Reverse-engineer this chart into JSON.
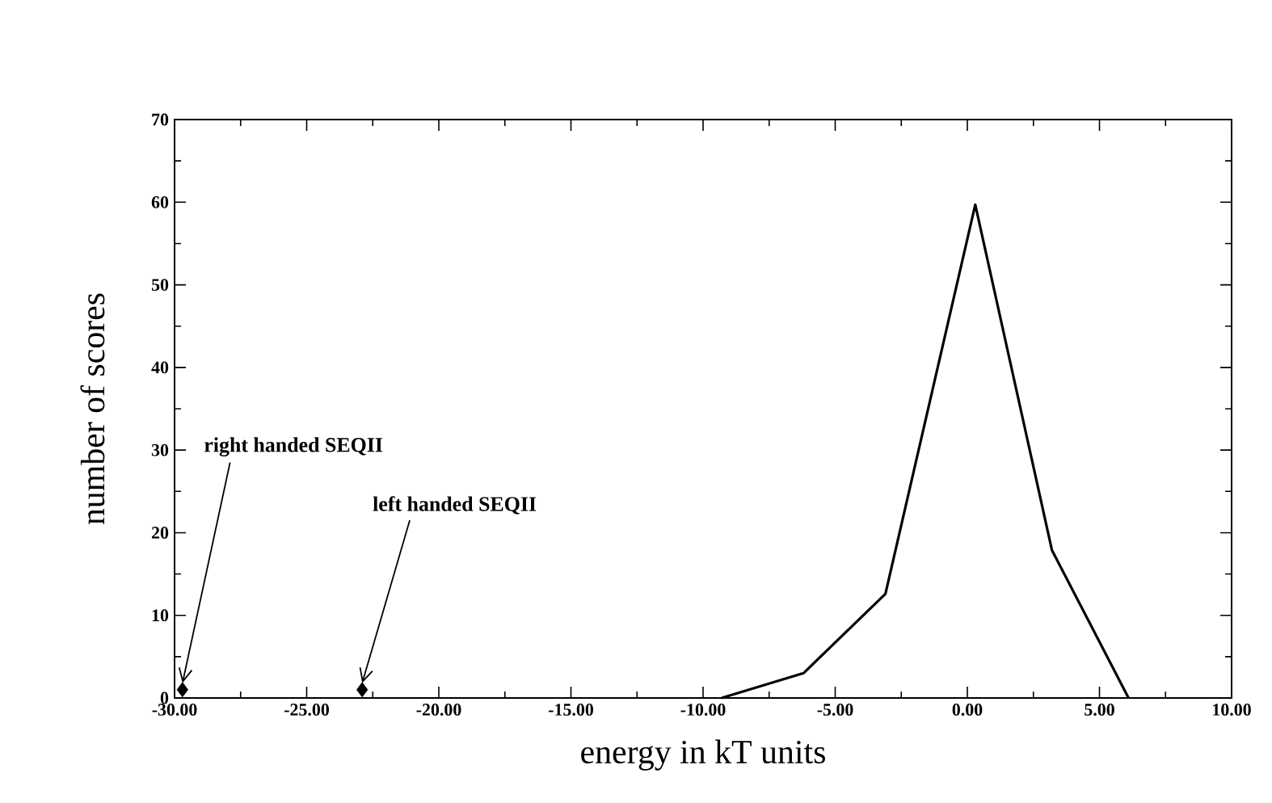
{
  "chart_data": {
    "type": "line",
    "xlabel": "energy in kT units",
    "ylabel": "number of scores",
    "xlim": [
      -30,
      10
    ],
    "ylim": [
      0,
      70
    ],
    "xticks": [
      {
        "value": -30,
        "label": "-30.00"
      },
      {
        "value": -25,
        "label": "-25.00"
      },
      {
        "value": -20,
        "label": "-20.00"
      },
      {
        "value": -15,
        "label": "-15.00"
      },
      {
        "value": -10,
        "label": "-10.00"
      },
      {
        "value": -5,
        "label": "-5.00"
      },
      {
        "value": 0,
        "label": "0.00"
      },
      {
        "value": 5,
        "label": "5.00"
      },
      {
        "value": 10,
        "label": "10.00"
      }
    ],
    "yticks": [
      0,
      10,
      20,
      30,
      40,
      50,
      60,
      70
    ],
    "series": [
      {
        "color": "#000000",
        "marker": "none",
        "x": [
          -9.3,
          -6.2,
          -3.1,
          0.3,
          3.2,
          6.1
        ],
        "values": [
          0,
          3,
          12.6,
          59.7,
          17.9,
          0
        ]
      },
      {
        "type": "scatter",
        "color": "#000000",
        "marker": "diamond",
        "x": [
          -29.7,
          -22.9
        ],
        "values": [
          1,
          1
        ]
      }
    ],
    "annotations": [
      {
        "text": "right handed SEQII",
        "x": -29.7,
        "y": 1
      },
      {
        "text": "left handed SEQII",
        "x": -22.9,
        "y": 1
      }
    ],
    "grid": false
  }
}
